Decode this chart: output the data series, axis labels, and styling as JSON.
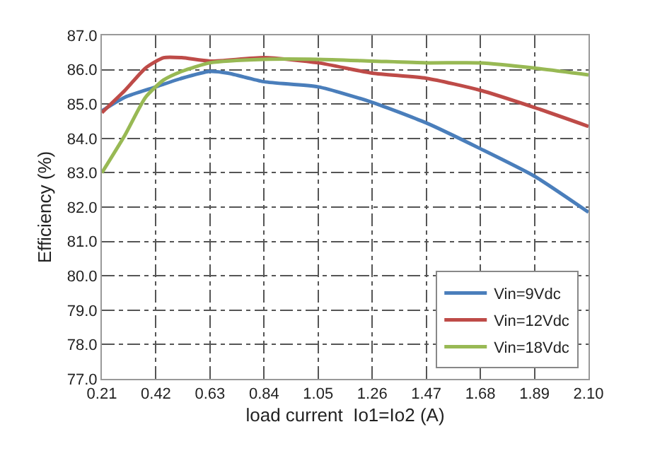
{
  "chart_data": {
    "type": "line",
    "xlabel": "load current  Io1=Io2 (A)",
    "ylabel": "Efficiency (%)",
    "xlim": [
      0.21,
      2.1
    ],
    "xticks": [
      {
        "value": 0.21,
        "label": "0.21"
      },
      {
        "value": 0.42,
        "label": "0.42"
      },
      {
        "value": 0.63,
        "label": "0.63"
      },
      {
        "value": 0.84,
        "label": "0.84"
      },
      {
        "value": 1.05,
        "label": "1.05"
      },
      {
        "value": 1.26,
        "label": "1.26"
      },
      {
        "value": 1.47,
        "label": "1.47"
      },
      {
        "value": 1.68,
        "label": "1.68"
      },
      {
        "value": 1.89,
        "label": "1.89"
      },
      {
        "value": 2.1,
        "label": "2.10"
      }
    ],
    "ylim": [
      77,
      87
    ],
    "yticks": [
      {
        "value": 77,
        "label": "77.0"
      },
      {
        "value": 78,
        "label": "78.0"
      },
      {
        "value": 79,
        "label": "79.0"
      },
      {
        "value": 80,
        "label": "80.0"
      },
      {
        "value": 81,
        "label": "81.0"
      },
      {
        "value": 82,
        "label": "82.0"
      },
      {
        "value": 83,
        "label": "83.0"
      },
      {
        "value": 84,
        "label": "84.0"
      },
      {
        "value": 85,
        "label": "85.0"
      },
      {
        "value": 86,
        "label": "86.0"
      },
      {
        "value": 87,
        "label": "87.0"
      }
    ],
    "grid": true,
    "legend": "bottom right",
    "marker": "none",
    "line_style": "solid",
    "x": [
      0.21,
      0.3,
      0.42,
      0.52,
      0.63,
      0.7,
      0.84,
      1.05,
      1.26,
      1.47,
      1.68,
      1.89,
      2.1
    ],
    "series": [
      {
        "name": "Vin=9Vdc",
        "color": "#4a7ebb",
        "values": [
          84.8,
          85.2,
          85.5,
          85.75,
          85.95,
          85.9,
          85.65,
          85.5,
          85.05,
          84.45,
          83.7,
          82.9,
          81.85
        ]
      },
      {
        "name": "Vin=12Vdc",
        "color": "#be4b48",
        "x": [
          0.21,
          0.3,
          0.38,
          0.45,
          0.52,
          0.63,
          0.84,
          1.05,
          1.26,
          1.47,
          1.68,
          1.89,
          2.1
        ],
        "values": [
          84.75,
          85.4,
          86.05,
          86.35,
          86.35,
          86.25,
          86.35,
          86.2,
          85.9,
          85.75,
          85.4,
          84.9,
          84.35
        ]
      },
      {
        "name": "Vin=18Vdc",
        "color": "#98b954",
        "x": [
          0.21,
          0.3,
          0.38,
          0.45,
          0.52,
          0.63,
          0.84,
          1.05,
          1.26,
          1.47,
          1.68,
          1.89,
          2.1
        ],
        "values": [
          83.0,
          84.1,
          85.2,
          85.7,
          85.95,
          86.2,
          86.3,
          86.3,
          86.25,
          86.2,
          86.2,
          86.05,
          85.85
        ]
      }
    ]
  }
}
